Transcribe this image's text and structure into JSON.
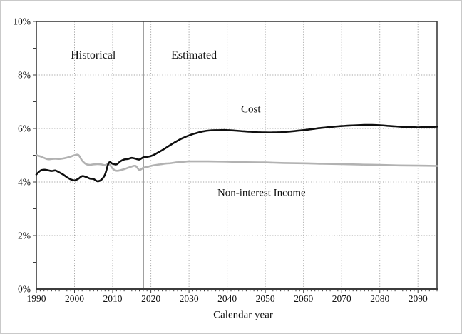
{
  "chart_data": {
    "type": "line",
    "title": "",
    "xlabel": "Calendar year",
    "ylabel": "",
    "xlim": [
      1990,
      2095
    ],
    "ylim": [
      0,
      10
    ],
    "x_major_ticks": [
      1990,
      2000,
      2010,
      2020,
      2030,
      2040,
      2050,
      2060,
      2070,
      2080,
      2090
    ],
    "x_minor_tick_step": 1,
    "y_major_ticks": [
      0,
      2,
      4,
      6,
      8,
      10
    ],
    "y_major_tick_labels": [
      "0%",
      "2%",
      "4%",
      "6%",
      "8%",
      "10%"
    ],
    "y_minor_tick_step": 1,
    "grid": "dotted",
    "legend": "none",
    "separator_year": 2018,
    "series": [
      {
        "name": "Non-interest Income",
        "color": "#b2b2b2",
        "x": [
          1990,
          1991,
          1992,
          1993,
          1994,
          1995,
          1996,
          1997,
          1998,
          1999,
          2000,
          2001,
          2002,
          2003,
          2004,
          2005,
          2006,
          2007,
          2008,
          2009,
          2010,
          2011,
          2012,
          2013,
          2014,
          2015,
          2016,
          2017,
          2018,
          2019,
          2020,
          2021,
          2022,
          2023,
          2024,
          2025,
          2026,
          2027,
          2028,
          2029,
          2030,
          2035,
          2040,
          2045,
          2050,
          2055,
          2060,
          2065,
          2070,
          2075,
          2080,
          2085,
          2090,
          2095
        ],
        "y": [
          5.0,
          4.96,
          4.9,
          4.85,
          4.86,
          4.87,
          4.86,
          4.88,
          4.91,
          4.95,
          5.0,
          5.01,
          4.8,
          4.67,
          4.64,
          4.66,
          4.67,
          4.66,
          4.63,
          4.68,
          4.5,
          4.42,
          4.44,
          4.48,
          4.53,
          4.58,
          4.6,
          4.45,
          4.53,
          4.56,
          4.6,
          4.63,
          4.65,
          4.67,
          4.69,
          4.7,
          4.72,
          4.74,
          4.75,
          4.76,
          4.77,
          4.77,
          4.76,
          4.74,
          4.73,
          4.71,
          4.7,
          4.68,
          4.67,
          4.65,
          4.64,
          4.62,
          4.61,
          4.6
        ]
      },
      {
        "name": "Cost",
        "color": "#0f0f0f",
        "x": [
          1990,
          1991,
          1992,
          1993,
          1994,
          1995,
          1996,
          1997,
          1998,
          1999,
          2000,
          2001,
          2002,
          2003,
          2004,
          2005,
          2006,
          2007,
          2008,
          2009,
          2010,
          2011,
          2012,
          2013,
          2014,
          2015,
          2016,
          2017,
          2018,
          2019,
          2020,
          2021,
          2022,
          2023,
          2024,
          2025,
          2026,
          2027,
          2028,
          2029,
          2030,
          2031,
          2032,
          2033,
          2034,
          2035,
          2036,
          2038,
          2040,
          2042,
          2044,
          2046,
          2048,
          2050,
          2052,
          2054,
          2056,
          2058,
          2060,
          2062,
          2064,
          2066,
          2068,
          2070,
          2072,
          2074,
          2076,
          2078,
          2080,
          2082,
          2084,
          2086,
          2088,
          2090,
          2092,
          2094,
          2095
        ],
        "y": [
          4.28,
          4.42,
          4.46,
          4.44,
          4.41,
          4.43,
          4.36,
          4.28,
          4.18,
          4.1,
          4.06,
          4.12,
          4.22,
          4.19,
          4.13,
          4.11,
          4.03,
          4.08,
          4.28,
          4.72,
          4.68,
          4.66,
          4.77,
          4.84,
          4.86,
          4.9,
          4.87,
          4.84,
          4.92,
          4.94,
          4.97,
          5.03,
          5.11,
          5.19,
          5.28,
          5.37,
          5.46,
          5.54,
          5.62,
          5.68,
          5.74,
          5.79,
          5.83,
          5.87,
          5.9,
          5.92,
          5.93,
          5.94,
          5.94,
          5.92,
          5.9,
          5.88,
          5.86,
          5.85,
          5.85,
          5.86,
          5.88,
          5.91,
          5.94,
          5.97,
          6.01,
          6.04,
          6.07,
          6.09,
          6.11,
          6.12,
          6.13,
          6.13,
          6.12,
          6.1,
          6.08,
          6.06,
          6.05,
          6.04,
          6.05,
          6.06,
          6.07
        ]
      }
    ],
    "annotations": {
      "historical": {
        "text": "Historical",
        "year": 2004.9,
        "pct": 8.72
      },
      "estimated": {
        "text": "Estimated",
        "year": 2031.3,
        "pct": 8.72
      },
      "cost": {
        "text": "Cost",
        "year": 2046.2,
        "pct": 6.69
      },
      "income": {
        "text": "Non-interest Income",
        "year": 2049.0,
        "pct": 3.57
      }
    },
    "colors": {
      "grid": "#a6a6a6",
      "frame": "#3c3c3c",
      "separator": "#606060",
      "tick_label": "#111111"
    }
  }
}
